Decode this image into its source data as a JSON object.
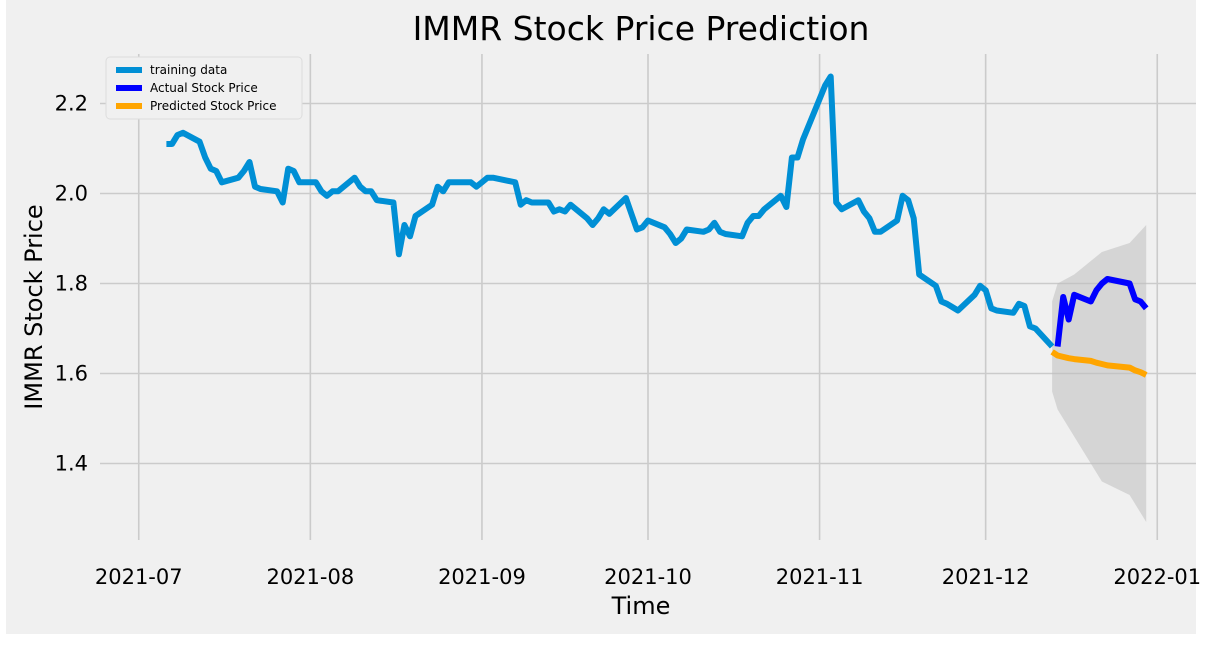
{
  "chart_data": {
    "type": "line",
    "title": "IMMR Stock Price Prediction",
    "xlabel": "Time",
    "ylabel": "IMMR Stock Price",
    "x_ticks": [
      "2021-07",
      "2021-08",
      "2021-09",
      "2021-10",
      "2021-11",
      "2021-12",
      "2022-01"
    ],
    "y_ticks": [
      "1.4",
      "1.6",
      "1.8",
      "2.0",
      "2.2"
    ],
    "xlim": [
      "2021-06-24",
      "2022-01-08"
    ],
    "ylim": [
      1.23,
      2.31
    ],
    "grid": true,
    "legend_position": "top-left",
    "colors": {
      "figure_bg": "#f0f0f0",
      "grid": "#cbcbcb",
      "text": "#000000",
      "band": "#c0c0c0"
    },
    "confidence_band": {
      "x": [
        "2021-12-13",
        "2021-12-14",
        "2021-12-17",
        "2021-12-22",
        "2021-12-27",
        "2021-12-30"
      ],
      "upper": [
        1.76,
        1.8,
        1.82,
        1.87,
        1.89,
        1.93
      ],
      "lower": [
        1.56,
        1.52,
        1.46,
        1.36,
        1.33,
        1.27
      ]
    },
    "series": [
      {
        "name": "training data",
        "color": "#008fd5",
        "x": [
          "2021-07-06",
          "2021-07-07",
          "2021-07-08",
          "2021-07-09",
          "2021-07-12",
          "2021-07-13",
          "2021-07-14",
          "2021-07-15",
          "2021-07-16",
          "2021-07-19",
          "2021-07-20",
          "2021-07-21",
          "2021-07-22",
          "2021-07-23",
          "2021-07-26",
          "2021-07-27",
          "2021-07-28",
          "2021-07-29",
          "2021-07-30",
          "2021-08-02",
          "2021-08-03",
          "2021-08-04",
          "2021-08-05",
          "2021-08-06",
          "2021-08-09",
          "2021-08-10",
          "2021-08-11",
          "2021-08-12",
          "2021-08-13",
          "2021-08-16",
          "2021-08-17",
          "2021-08-18",
          "2021-08-19",
          "2021-08-20",
          "2021-08-23",
          "2021-08-24",
          "2021-08-25",
          "2021-08-26",
          "2021-08-27",
          "2021-08-30",
          "2021-08-31",
          "2021-09-01",
          "2021-09-02",
          "2021-09-03",
          "2021-09-07",
          "2021-09-08",
          "2021-09-09",
          "2021-09-10",
          "2021-09-13",
          "2021-09-14",
          "2021-09-15",
          "2021-09-16",
          "2021-09-17",
          "2021-09-20",
          "2021-09-21",
          "2021-09-22",
          "2021-09-23",
          "2021-09-24",
          "2021-09-27",
          "2021-09-28",
          "2021-09-29",
          "2021-09-30",
          "2021-10-01",
          "2021-10-04",
          "2021-10-05",
          "2021-10-06",
          "2021-10-07",
          "2021-10-08",
          "2021-10-11",
          "2021-10-12",
          "2021-10-13",
          "2021-10-14",
          "2021-10-15",
          "2021-10-18",
          "2021-10-19",
          "2021-10-20",
          "2021-10-21",
          "2021-10-22",
          "2021-10-25",
          "2021-10-26",
          "2021-10-27",
          "2021-10-28",
          "2021-10-29",
          "2021-11-01",
          "2021-11-02",
          "2021-11-03",
          "2021-11-04",
          "2021-11-05",
          "2021-11-08",
          "2021-11-09",
          "2021-11-10",
          "2021-11-11",
          "2021-11-12",
          "2021-11-15",
          "2021-11-16",
          "2021-11-17",
          "2021-11-18",
          "2021-11-19",
          "2021-11-22",
          "2021-11-23",
          "2021-11-24",
          "2021-11-26",
          "2021-11-29",
          "2021-11-30",
          "2021-12-01",
          "2021-12-02",
          "2021-12-03",
          "2021-12-06",
          "2021-12-07",
          "2021-12-08",
          "2021-12-09",
          "2021-12-10",
          "2021-12-13"
        ],
        "values": [
          2.11,
          2.11,
          2.13,
          2.135,
          2.115,
          2.08,
          2.055,
          2.05,
          2.025,
          2.035,
          2.05,
          2.07,
          2.015,
          2.01,
          2.005,
          1.98,
          2.055,
          2.05,
          2.025,
          2.025,
          2.005,
          1.995,
          2.005,
          2.005,
          2.035,
          2.015,
          2.005,
          2.005,
          1.985,
          1.98,
          1.865,
          1.93,
          1.905,
          1.95,
          1.975,
          2.015,
          2.005,
          2.025,
          2.025,
          2.025,
          2.015,
          2.025,
          2.035,
          2.035,
          2.025,
          1.975,
          1.985,
          1.98,
          1.98,
          1.96,
          1.965,
          1.96,
          1.975,
          1.945,
          1.93,
          1.945,
          1.965,
          1.955,
          1.99,
          1.955,
          1.92,
          1.925,
          1.94,
          1.925,
          1.91,
          1.89,
          1.9,
          1.92,
          1.915,
          1.92,
          1.935,
          1.915,
          1.91,
          1.905,
          1.935,
          1.95,
          1.95,
          1.965,
          1.995,
          1.97,
          2.08,
          2.08,
          2.12,
          2.21,
          2.24,
          2.26,
          1.98,
          1.965,
          1.985,
          1.96,
          1.945,
          1.915,
          1.915,
          1.94,
          1.995,
          1.985,
          1.945,
          1.82,
          1.795,
          1.76,
          1.755,
          1.74,
          1.775,
          1.795,
          1.785,
          1.745,
          1.74,
          1.735,
          1.755,
          1.75,
          1.705,
          1.7,
          1.66
        ]
      },
      {
        "name": "Actual Stock Price",
        "color": "#0000ff",
        "x": [
          "2021-12-14",
          "2021-12-15",
          "2021-12-16",
          "2021-12-17",
          "2021-12-20",
          "2021-12-21",
          "2021-12-22",
          "2021-12-23",
          "2021-12-27",
          "2021-12-28",
          "2021-12-29",
          "2021-12-30"
        ],
        "values": [
          1.66,
          1.77,
          1.72,
          1.775,
          1.76,
          1.785,
          1.8,
          1.81,
          1.8,
          1.765,
          1.76,
          1.745
        ]
      },
      {
        "name": "Predicted Stock Price",
        "color": "#ffa500",
        "x": [
          "2021-12-13",
          "2021-12-14",
          "2021-12-15",
          "2021-12-16",
          "2021-12-17",
          "2021-12-20",
          "2021-12-21",
          "2021-12-22",
          "2021-12-23",
          "2021-12-27",
          "2021-12-28",
          "2021-12-29",
          "2021-12-30"
        ],
        "values": [
          1.648,
          1.64,
          1.637,
          1.634,
          1.632,
          1.628,
          1.624,
          1.621,
          1.618,
          1.613,
          1.607,
          1.603,
          1.597
        ]
      }
    ]
  }
}
